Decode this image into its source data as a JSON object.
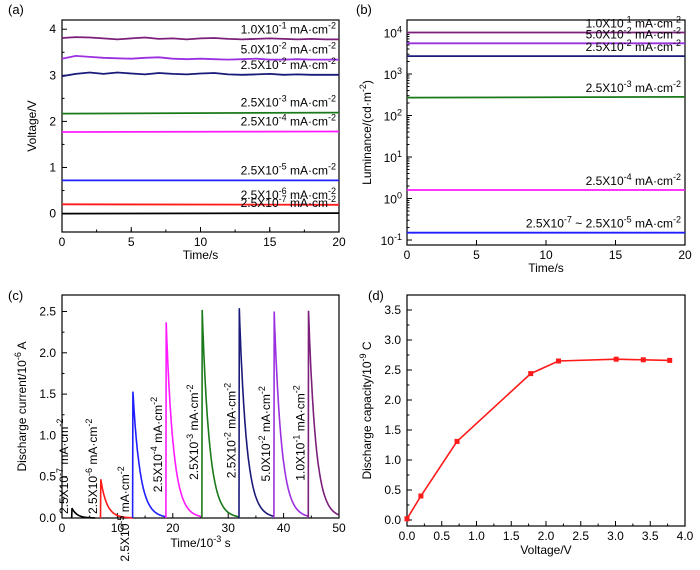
{
  "chart_data": [
    {
      "panel_label": "(a)",
      "type": "line",
      "xlabel": "Time/s",
      "ylabel": "Voltage/V",
      "xlim": [
        0,
        20
      ],
      "ylim": [
        -0.4,
        4.2
      ],
      "xticks": [
        "0",
        "5",
        "10",
        "15",
        "20"
      ],
      "yticks": [
        "0",
        "1",
        "2",
        "3",
        "4"
      ],
      "grid": false,
      "series": [
        {
          "label_base": "1.0X10",
          "label_exp": "-1",
          "label_unit": " mA·cm",
          "color": "#7b1f7b",
          "x": [
            0,
            1,
            2,
            3,
            4,
            5,
            6,
            7,
            8,
            9,
            10,
            11,
            12,
            13,
            14,
            15,
            16,
            17,
            18,
            19,
            20
          ],
          "y": [
            3.81,
            3.83,
            3.82,
            3.8,
            3.78,
            3.8,
            3.82,
            3.79,
            3.8,
            3.78,
            3.8,
            3.81,
            3.79,
            3.78,
            3.79,
            3.8,
            3.79,
            3.78,
            3.79,
            3.78,
            3.78
          ]
        },
        {
          "label_base": "5.0X10",
          "label_exp": "-2",
          "label_unit": " mA·cm",
          "color": "#9b30e0",
          "x": [
            0,
            1,
            2,
            3,
            4,
            5,
            6,
            7,
            8,
            9,
            10,
            11,
            12,
            13,
            14,
            15,
            16,
            17,
            18,
            19,
            20
          ],
          "y": [
            3.36,
            3.42,
            3.4,
            3.38,
            3.37,
            3.36,
            3.38,
            3.39,
            3.36,
            3.35,
            3.36,
            3.35,
            3.34,
            3.35,
            3.36,
            3.34,
            3.34,
            3.35,
            3.34,
            3.34,
            3.34
          ]
        },
        {
          "label_base": "2.5X10",
          "label_exp": "-2",
          "label_unit": " mA·cm",
          "color": "#1a1a7a",
          "x": [
            0,
            1,
            2,
            3,
            4,
            5,
            6,
            7,
            8,
            9,
            10,
            11,
            12,
            13,
            14,
            15,
            16,
            17,
            18,
            19,
            20
          ],
          "y": [
            2.98,
            3.03,
            3.06,
            3.03,
            3.06,
            3.04,
            3.02,
            3.05,
            3.03,
            3.02,
            3.04,
            3.05,
            3.02,
            3.01,
            3.02,
            3.03,
            3.01,
            3.02,
            3.01,
            3.01,
            3.01
          ]
        },
        {
          "label_base": "2.5X10",
          "label_exp": "-3",
          "label_unit": " mA·cm",
          "color": "#1a7a1a",
          "x": [
            0,
            20
          ],
          "y": [
            2.17,
            2.19
          ]
        },
        {
          "label_base": "2.5X10",
          "label_exp": "-4",
          "label_unit": " mA·cm",
          "color": "#ff1aff",
          "x": [
            0,
            20
          ],
          "y": [
            1.77,
            1.78
          ]
        },
        {
          "label_base": "2.5X10",
          "label_exp": "-5",
          "label_unit": " mA·cm",
          "color": "#1f1fff",
          "x": [
            0,
            20
          ],
          "y": [
            0.72,
            0.72
          ]
        },
        {
          "label_base": "2.5X10",
          "label_exp": "-6",
          "label_unit": " mA·cm",
          "color": "#ff1a1a",
          "x": [
            0,
            20
          ],
          "y": [
            0.2,
            0.19
          ]
        },
        {
          "label_base": "2.5X10",
          "label_exp": "-7",
          "label_unit": " mA·cm",
          "color": "#000000",
          "x": [
            0,
            20
          ],
          "y": [
            0.0,
            0.01
          ]
        }
      ]
    },
    {
      "panel_label": "(b)",
      "type": "line",
      "xlabel": "Time/s",
      "ylabel_base": "Luminance/(cd·m",
      "ylabel_exp": "-2",
      "ylabel_end": ")",
      "yscale": "log",
      "xlim": [
        0,
        20
      ],
      "ylim": [
        0.1,
        20000
      ],
      "xticks": [
        "0",
        "5",
        "10",
        "15",
        "20"
      ],
      "ytick_base": "10",
      "ytick_exps": [
        "-1",
        "0",
        "1",
        "2",
        "3",
        "4"
      ],
      "grid": false,
      "series": [
        {
          "label_base": "1.0X10",
          "label_exp": "-1",
          "label_unit": " mA·cm",
          "color": "#7b1f7b",
          "x": [
            0,
            20
          ],
          "y": [
            10000,
            10000
          ]
        },
        {
          "label_base": "5.0X10",
          "label_exp": "-2",
          "label_unit": " mA·cm",
          "color": "#9b30e0",
          "x": [
            0,
            20
          ],
          "y": [
            5500,
            5500
          ]
        },
        {
          "label_base": "2.5X10",
          "label_exp": "-2",
          "label_unit": " mA·cm",
          "color": "#1a1a7a",
          "x": [
            0,
            20
          ],
          "y": [
            2700,
            2700
          ]
        },
        {
          "label_base": "2.5X10",
          "label_exp": "-3",
          "label_unit": " mA·cm",
          "color": "#1a7a1a",
          "x": [
            0,
            20
          ],
          "y": [
            270,
            280
          ]
        },
        {
          "label_base": "2.5X10",
          "label_exp": "-4",
          "label_unit": " mA·cm",
          "color": "#ff1aff",
          "x": [
            0,
            20
          ],
          "y": [
            1.6,
            1.6
          ]
        },
        {
          "label_base": "2.5X10",
          "label_exp": "-7",
          "label_mid": " ~ ",
          "label_base2": "2.5X10",
          "label_exp2": "-5",
          "label_unit": " mA·cm",
          "color": "#1f1fff",
          "x": [
            0,
            20
          ],
          "y": [
            0.15,
            0.15
          ]
        }
      ]
    },
    {
      "panel_label": "(c)",
      "type": "line",
      "xlabel_base": "Time/10",
      "xlabel_exp": "-3",
      "xlabel_end": " s",
      "ylabel_base": "Discharge current/10",
      "ylabel_exp": "-6",
      "ylabel_end": " A",
      "xlim": [
        0,
        50
      ],
      "ylim": [
        0,
        2.7
      ],
      "xticks": [
        "0",
        "10",
        "20",
        "30",
        "40",
        "50"
      ],
      "yticks": [
        "0.0",
        "0.5",
        "1.0",
        "1.5",
        "2.0",
        "2.5"
      ],
      "grid": false,
      "pulses": [
        {
          "label_base": "2.5X10",
          "label_exp": "-7",
          "label_unit": " mA·cm",
          "color": "#000000",
          "start": 1.8,
          "peak": 0.12,
          "decay": 0.9,
          "end": 6
        },
        {
          "label_base": "2.5X10",
          "label_exp": "-6",
          "label_unit": " mA·cm",
          "color": "#ff1a1a",
          "start": 7.0,
          "peak": 0.47,
          "decay": 1.1,
          "end": 12.8
        },
        {
          "label_base": "2.5X10",
          "label_exp": "-5",
          "label_unit": " mA·cm",
          "color": "#1f1fff",
          "start": 12.8,
          "peak": 1.53,
          "decay": 1.3,
          "end": 18.8
        },
        {
          "label_base": "2.5X10",
          "label_exp": "-4",
          "label_unit": " mA·cm",
          "color": "#ff1aff",
          "start": 18.8,
          "peak": 2.37,
          "decay": 1.3,
          "end": 25.3
        },
        {
          "label_base": "2.5X10",
          "label_exp": "-3",
          "label_unit": " mA·cm",
          "color": "#1a7a1a",
          "start": 25.3,
          "peak": 2.52,
          "decay": 1.3,
          "end": 32.0
        },
        {
          "label_base": "2.5X10",
          "label_exp": "-2",
          "label_unit": " mA·cm",
          "color": "#1a1a7a",
          "start": 32.0,
          "peak": 2.54,
          "decay": 1.3,
          "end": 38.3
        },
        {
          "label_base": "5.0X10",
          "label_exp": "-2",
          "label_unit": " mA·cm",
          "color": "#9b30e0",
          "start": 38.3,
          "peak": 2.5,
          "decay": 1.3,
          "end": 44.5
        },
        {
          "label_base": "1.0X10",
          "label_exp": "-1",
          "label_unit": " mA·cm",
          "color": "#7b1f7b",
          "start": 44.5,
          "peak": 2.51,
          "decay": 1.3,
          "end": 50.0
        }
      ]
    },
    {
      "panel_label": "(d)",
      "type": "line",
      "xlabel": "Voltage/V",
      "ylabel_base": "Discharge capacity/10",
      "ylabel_exp": "-9",
      "ylabel_end": " C",
      "xlim": [
        0,
        4.0
      ],
      "ylim": [
        -0.1,
        3.75
      ],
      "xticks": [
        "0.0",
        "0.5",
        "1.0",
        "1.5",
        "2.0",
        "2.5",
        "3.0",
        "3.5",
        "4.0"
      ],
      "yticks": [
        "0.0",
        "0.5",
        "1.0",
        "1.5",
        "2.0",
        "2.5",
        "3.0",
        "3.5"
      ],
      "grid": false,
      "series": [
        {
          "color": "#ff1a1a",
          "marker": "square",
          "x": [
            0.0,
            0.2,
            0.72,
            1.78,
            2.18,
            3.01,
            3.4,
            3.78
          ],
          "y": [
            0.02,
            0.4,
            1.31,
            2.44,
            2.65,
            2.68,
            2.67,
            2.66
          ]
        }
      ]
    }
  ]
}
